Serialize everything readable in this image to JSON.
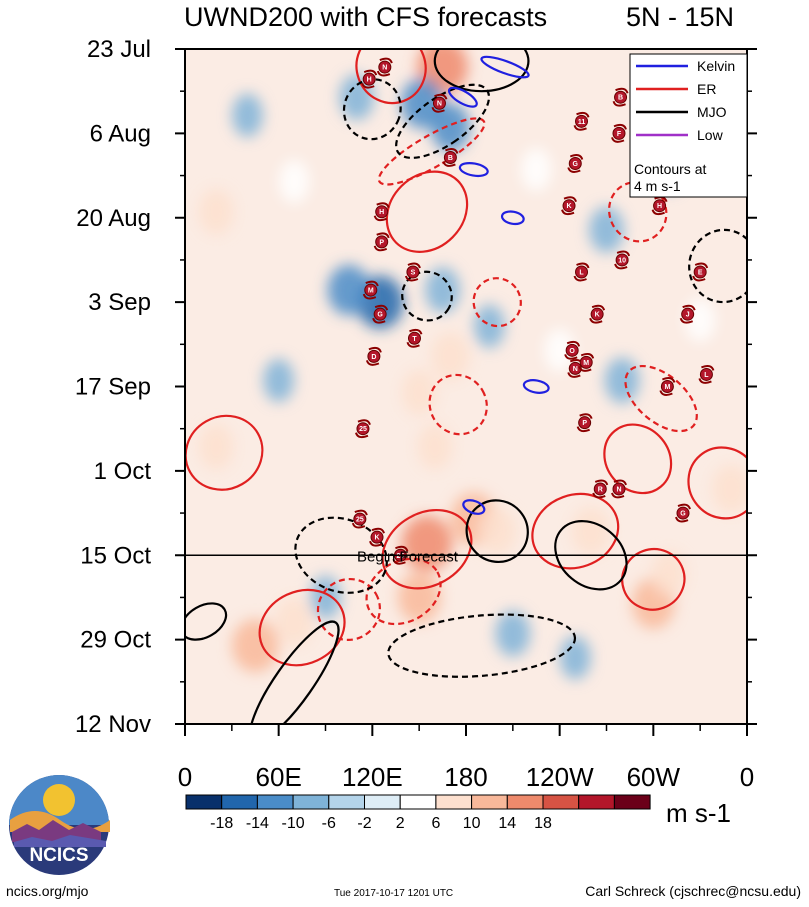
{
  "header": {
    "title": "UWND200 with CFS forecasts",
    "lat_band": "5N - 15N"
  },
  "legend": {
    "items": [
      {
        "label": "Kelvin",
        "color": "#2020e0"
      },
      {
        "label": "ER",
        "color": "#e02020"
      },
      {
        "label": "MJO",
        "color": "#000000"
      },
      {
        "label": "Low",
        "color": "#a030c8"
      }
    ],
    "note": "Contours at 4 m s-1"
  },
  "forecast_label": "Begin Forecast",
  "colorbar": {
    "labels": [
      "-18",
      "-14",
      "-10",
      "-6",
      "-2",
      "2",
      "6",
      "10",
      "14",
      "18"
    ],
    "colors": [
      "#08306b",
      "#2166ac",
      "#4a8cc8",
      "#7fb3d8",
      "#b4d4ea",
      "#deedf6",
      "#ffffff",
      "#fde0cf",
      "#f8b89a",
      "#ee8a6c",
      "#d65344",
      "#b3162a",
      "#6b0019"
    ],
    "units": "m s-1"
  },
  "logo": {
    "text": "NCICS"
  },
  "footer": {
    "left": "ncics.org/mjo",
    "center": "Tue 2017-10-17 1201 UTC",
    "right": "Carl Schreck (cjschrec@ncsu.edu)"
  },
  "chart_data": {
    "type": "heatmap",
    "title": "UWND200 with CFS forecasts",
    "subtitle": "5N - 15N",
    "x_ticks": [
      "0",
      "60E",
      "120E",
      "180",
      "120W",
      "60W",
      "0"
    ],
    "x_tick_lon": [
      0,
      60,
      120,
      180,
      240,
      300,
      360
    ],
    "y_ticks": [
      "23 Jul",
      "6 Aug",
      "20 Aug",
      "3 Sep",
      "17 Sep",
      "1 Oct",
      "15 Oct",
      "29 Oct",
      "12 Nov"
    ],
    "y_tick_day": [
      0,
      14,
      28,
      42,
      56,
      70,
      84,
      98,
      112
    ],
    "xlim": [
      0,
      360
    ],
    "ylim_days": [
      0,
      112
    ],
    "forecast_start_day": 84,
    "blobs": [
      {
        "lon": 165,
        "day": 3,
        "v": 16
      },
      {
        "lon": 152,
        "day": 9,
        "v": -12
      },
      {
        "lon": 170,
        "day": 13,
        "v": -10
      },
      {
        "lon": 110,
        "day": 8,
        "v": -8
      },
      {
        "lon": 40,
        "day": 11,
        "v": -6
      },
      {
        "lon": 20,
        "day": 27,
        "v": 8
      },
      {
        "lon": 70,
        "day": 22,
        "v": 6
      },
      {
        "lon": 125,
        "day": 42,
        "v": -14
      },
      {
        "lon": 105,
        "day": 40,
        "v": -12
      },
      {
        "lon": 165,
        "day": 40,
        "v": -8
      },
      {
        "lon": 195,
        "day": 46,
        "v": -6
      },
      {
        "lon": 170,
        "day": 51,
        "v": 10
      },
      {
        "lon": 150,
        "day": 57,
        "v": 8
      },
      {
        "lon": 160,
        "day": 66,
        "v": 8
      },
      {
        "lon": 185,
        "day": 78,
        "v": 14
      },
      {
        "lon": 155,
        "day": 82,
        "v": 16
      },
      {
        "lon": 200,
        "day": 80,
        "v": 10
      },
      {
        "lon": 260,
        "day": 80,
        "v": 10
      },
      {
        "lon": 350,
        "day": 73,
        "v": 10
      },
      {
        "lon": 20,
        "day": 66,
        "v": 8
      },
      {
        "lon": 45,
        "day": 99,
        "v": 14
      },
      {
        "lon": 70,
        "day": 95,
        "v": 10
      },
      {
        "lon": 150,
        "day": 91,
        "v": 12
      },
      {
        "lon": 210,
        "day": 97,
        "v": -8
      },
      {
        "lon": 250,
        "day": 101,
        "v": -6
      },
      {
        "lon": 300,
        "day": 92,
        "v": 12
      },
      {
        "lon": 310,
        "day": 87,
        "v": 8
      },
      {
        "lon": 90,
        "day": 91,
        "v": -6
      },
      {
        "lon": 280,
        "day": 55,
        "v": -8
      },
      {
        "lon": 270,
        "day": 30,
        "v": -8
      },
      {
        "lon": 310,
        "day": 20,
        "v": -6
      },
      {
        "lon": 240,
        "day": 50,
        "v": 6
      },
      {
        "lon": 330,
        "day": 45,
        "v": 6
      },
      {
        "lon": 225,
        "day": 20,
        "v": 6
      },
      {
        "lon": 60,
        "day": 55,
        "v": -6
      }
    ],
    "series": [
      {
        "name": "ER",
        "color": "#e02020",
        "contours": [
          {
            "lon": 132,
            "day": 3,
            "rx": 22,
            "rday": 6,
            "angle": -20,
            "dash": false
          },
          {
            "lon": 158,
            "day": 17,
            "rx": 10,
            "rday": 10,
            "angle": 60,
            "dash": true
          },
          {
            "lon": 155,
            "day": 27,
            "rx": 28,
            "rday": 6,
            "angle": -45,
            "dash": false
          },
          {
            "lon": 25,
            "day": 67,
            "rx": 25,
            "rday": 6,
            "angle": -30,
            "dash": false
          },
          {
            "lon": 175,
            "day": 59,
            "rx": 18,
            "rday": 5,
            "angle": -30,
            "dash": true
          },
          {
            "lon": 155,
            "day": 83,
            "rx": 30,
            "rday": 6,
            "angle": -30,
            "dash": false
          },
          {
            "lon": 250,
            "day": 80,
            "rx": 28,
            "rday": 6,
            "angle": -20,
            "dash": false
          },
          {
            "lon": 290,
            "day": 68,
            "rx": 20,
            "rday": 6,
            "angle": -40,
            "dash": false
          },
          {
            "lon": 345,
            "day": 72,
            "rx": 22,
            "rday": 6,
            "angle": -40,
            "dash": false
          },
          {
            "lon": 75,
            "day": 96,
            "rx": 28,
            "rday": 6,
            "angle": -25,
            "dash": false
          },
          {
            "lon": 140,
            "day": 90,
            "rx": 25,
            "rday": 5,
            "angle": -30,
            "dash": true
          },
          {
            "lon": 105,
            "day": 93,
            "rx": 20,
            "rday": 5,
            "angle": -30,
            "dash": true
          },
          {
            "lon": 300,
            "day": 88,
            "rx": 20,
            "rday": 5,
            "angle": -20,
            "dash": false
          },
          {
            "lon": 305,
            "day": 58,
            "rx": 15,
            "rday": 7,
            "angle": -50,
            "dash": true
          },
          {
            "lon": 290,
            "day": 27,
            "rx": 18,
            "rday": 5,
            "angle": -30,
            "dash": true
          },
          {
            "lon": 200,
            "day": 42,
            "rx": 15,
            "rday": 4,
            "angle": -30,
            "dash": true
          }
        ]
      },
      {
        "name": "MJO",
        "color": "#000000",
        "contours": [
          {
            "lon": 165,
            "day": 12,
            "rx": 15,
            "rday": 9,
            "angle": 55,
            "dash": true
          },
          {
            "lon": 120,
            "day": 10,
            "rx": 18,
            "rday": 5,
            "angle": 20,
            "dash": true
          },
          {
            "lon": 190,
            "day": 2,
            "rx": 30,
            "rday": 5,
            "angle": 0,
            "dash": false
          },
          {
            "lon": 70,
            "day": 105,
            "rx": 12,
            "rday": 12,
            "angle": 35,
            "dash": false
          },
          {
            "lon": 12,
            "day": 95,
            "rx": 10,
            "rday": 4,
            "angle": 60,
            "dash": false
          },
          {
            "lon": 200,
            "day": 80,
            "rx": 20,
            "rday": 5,
            "angle": 50,
            "dash": false
          },
          {
            "lon": 260,
            "day": 84,
            "rx": 25,
            "rday": 5,
            "angle": 40,
            "dash": false
          },
          {
            "lon": 155,
            "day": 41,
            "rx": 16,
            "rday": 4,
            "angle": 30,
            "dash": true
          },
          {
            "lon": 190,
            "day": 99,
            "rx": 60,
            "rday": 5,
            "angle": -5,
            "dash": true
          },
          {
            "lon": 100,
            "day": 84,
            "rx": 30,
            "rday": 6,
            "angle": 20,
            "dash": true
          },
          {
            "lon": 345,
            "day": 36,
            "rx": 22,
            "rday": 6,
            "angle": 10,
            "dash": true
          }
        ]
      },
      {
        "name": "Kelvin",
        "color": "#2020e0",
        "contours": [
          {
            "lon": 205,
            "day": 3,
            "rx": 16,
            "rday": 1,
            "angle": 20,
            "dash": false
          },
          {
            "lon": 178,
            "day": 8,
            "rx": 10,
            "rday": 1,
            "angle": 30,
            "dash": false
          },
          {
            "lon": 185,
            "day": 20,
            "rx": 9,
            "rday": 1,
            "angle": 10,
            "dash": false
          },
          {
            "lon": 210,
            "day": 28,
            "rx": 7,
            "rday": 1,
            "angle": 10,
            "dash": false
          },
          {
            "lon": 225,
            "day": 56,
            "rx": 8,
            "rday": 1,
            "angle": 10,
            "dash": false
          },
          {
            "lon": 185,
            "day": 76,
            "rx": 7,
            "rday": 1,
            "angle": 20,
            "dash": false
          }
        ]
      },
      {
        "name": "Low",
        "color": "#a030c8",
        "contours": []
      }
    ],
    "storms": [
      {
        "label": "N",
        "lon": 128,
        "day": 3
      },
      {
        "label": "H",
        "lon": 118,
        "day": 5
      },
      {
        "label": "N",
        "lon": 163,
        "day": 9
      },
      {
        "label": "B",
        "lon": 170,
        "day": 18
      },
      {
        "label": "H",
        "lon": 126,
        "day": 27
      },
      {
        "label": "P",
        "lon": 126,
        "day": 32
      },
      {
        "label": "S",
        "lon": 146,
        "day": 37
      },
      {
        "label": "M",
        "lon": 119,
        "day": 40
      },
      {
        "label": "G",
        "lon": 125,
        "day": 44
      },
      {
        "label": "T",
        "lon": 147,
        "day": 48
      },
      {
        "label": "D",
        "lon": 121,
        "day": 51
      },
      {
        "label": "25",
        "lon": 114,
        "day": 63
      },
      {
        "label": "25",
        "lon": 112,
        "day": 78
      },
      {
        "label": "K",
        "lon": 123,
        "day": 81
      },
      {
        "label": "25",
        "lon": 138,
        "day": 84
      },
      {
        "label": "F",
        "lon": 278,
        "day": 14
      },
      {
        "label": "11",
        "lon": 254,
        "day": 12
      },
      {
        "label": "B",
        "lon": 279,
        "day": 8
      },
      {
        "label": "G",
        "lon": 250,
        "day": 19
      },
      {
        "label": "K",
        "lon": 246,
        "day": 26
      },
      {
        "label": "H",
        "lon": 304,
        "day": 26
      },
      {
        "label": "10",
        "lon": 280,
        "day": 35
      },
      {
        "label": "L",
        "lon": 254,
        "day": 37
      },
      {
        "label": "K",
        "lon": 264,
        "day": 44
      },
      {
        "label": "J",
        "lon": 322,
        "day": 44
      },
      {
        "label": "O",
        "lon": 248,
        "day": 50
      },
      {
        "label": "N",
        "lon": 250,
        "day": 53
      },
      {
        "label": "M",
        "lon": 257,
        "day": 52
      },
      {
        "label": "M",
        "lon": 309,
        "day": 56
      },
      {
        "label": "L",
        "lon": 334,
        "day": 54
      },
      {
        "label": "P",
        "lon": 256,
        "day": 62
      },
      {
        "label": "R",
        "lon": 266,
        "day": 73
      },
      {
        "label": "N",
        "lon": 278,
        "day": 73
      },
      {
        "label": "G",
        "lon": 319,
        "day": 77
      },
      {
        "label": "E",
        "lon": 330,
        "day": 37
      }
    ]
  }
}
